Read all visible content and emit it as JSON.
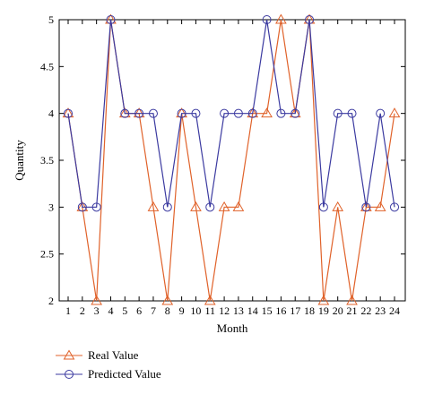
{
  "chart_data": {
    "type": "line",
    "xlabel": "Month",
    "ylabel": "Quantity",
    "ylim": [
      2,
      5
    ],
    "yticks": [
      "2",
      "2.5",
      "3",
      "3.5",
      "4",
      "4.5",
      "5"
    ],
    "x": [
      1,
      2,
      3,
      4,
      5,
      6,
      7,
      8,
      9,
      10,
      11,
      12,
      13,
      14,
      15,
      16,
      17,
      18,
      19,
      20,
      21,
      22,
      23,
      24
    ],
    "grid": false,
    "legend_position": "bottom-left",
    "series": [
      {
        "name": "Real Value",
        "color": "#e0622a",
        "marker": "triangle",
        "values": [
          4,
          3,
          2,
          5,
          4,
          4,
          3,
          2,
          4,
          3,
          2,
          3,
          3,
          4,
          4,
          5,
          4,
          5,
          2,
          3,
          2,
          3,
          3,
          4
        ]
      },
      {
        "name": "Predicted Value",
        "color": "#3b3aa0",
        "marker": "circle",
        "values": [
          4,
          3,
          3,
          5,
          4,
          4,
          4,
          3,
          4,
          4,
          3,
          4,
          4,
          4,
          5,
          4,
          4,
          5,
          3,
          4,
          4,
          3,
          4,
          3
        ]
      }
    ]
  }
}
